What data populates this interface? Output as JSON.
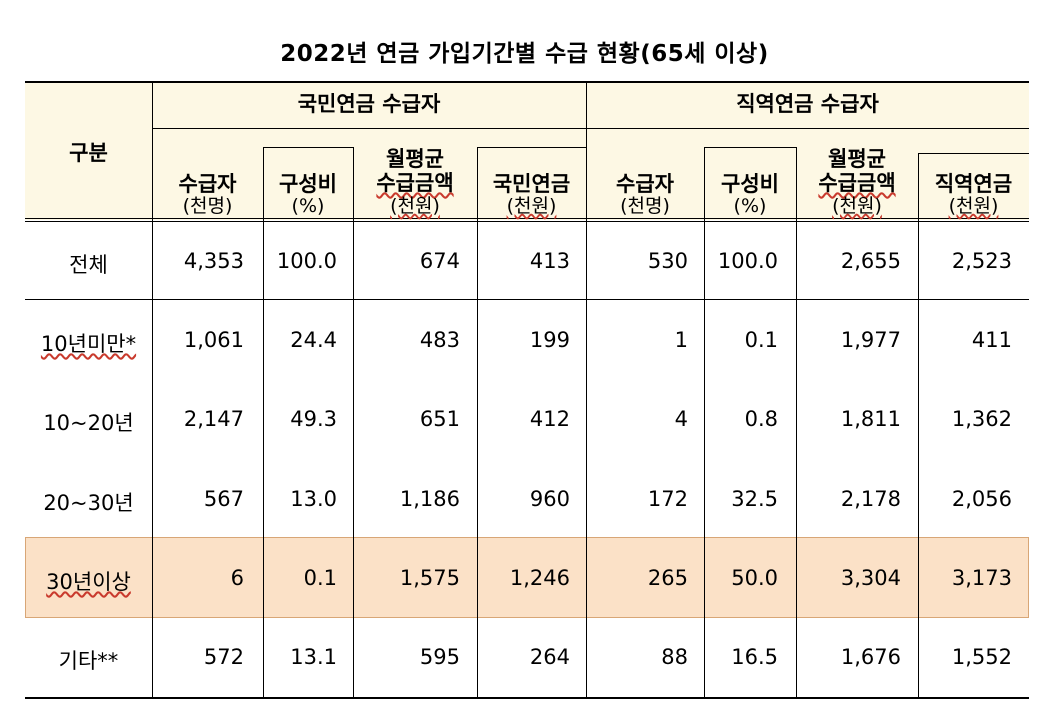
{
  "title": "2022년 연금 가입기간별 수급 현황(65세 이상)",
  "header": {
    "category": "구분",
    "groups": [
      "국민연금 수급자",
      "직역연금 수급자"
    ],
    "columns": [
      {
        "label": "수급자",
        "unit": "(천명)"
      },
      {
        "label": "구성비",
        "unit": "(%)"
      },
      {
        "label1": "월평균",
        "label2": "수급금액",
        "unit": "(천원)"
      },
      {
        "label": "국민연금",
        "unit": "(천원)"
      },
      {
        "label": "수급자",
        "unit": "(천명)"
      },
      {
        "label": "구성비",
        "unit": "(%)"
      },
      {
        "label1": "월평균",
        "label2": "수급금액",
        "unit": "(천원)"
      },
      {
        "label": "직역연금",
        "unit": "(천원)"
      }
    ]
  },
  "rows": [
    {
      "label": "전체",
      "values": [
        "4,353",
        "100.0",
        "674",
        "413",
        "530",
        "100.0",
        "2,655",
        "2,523"
      ]
    },
    {
      "label": "10년미만*",
      "values": [
        "1,061",
        "24.4",
        "483",
        "199",
        "1",
        "0.1",
        "1,977",
        "411"
      ]
    },
    {
      "label": "10~20년",
      "values": [
        "2,147",
        "49.3",
        "651",
        "412",
        "4",
        "0.8",
        "1,811",
        "1,362"
      ]
    },
    {
      "label": "20~30년",
      "values": [
        "567",
        "13.0",
        "1,186",
        "960",
        "172",
        "32.5",
        "2,178",
        "2,056"
      ]
    },
    {
      "label": "30년이상",
      "values": [
        "6",
        "0.1",
        "1,575",
        "1,246",
        "265",
        "50.0",
        "3,304",
        "3,173"
      ],
      "highlight": true
    },
    {
      "label": "기타**",
      "values": [
        "572",
        "13.1",
        "595",
        "264",
        "88",
        "16.5",
        "1,676",
        "1,552"
      ]
    }
  ],
  "colors": {
    "header_bg": "#fdf8e4",
    "highlight_bg": "#fbe1c7",
    "highlight_border": "#d8a676"
  }
}
